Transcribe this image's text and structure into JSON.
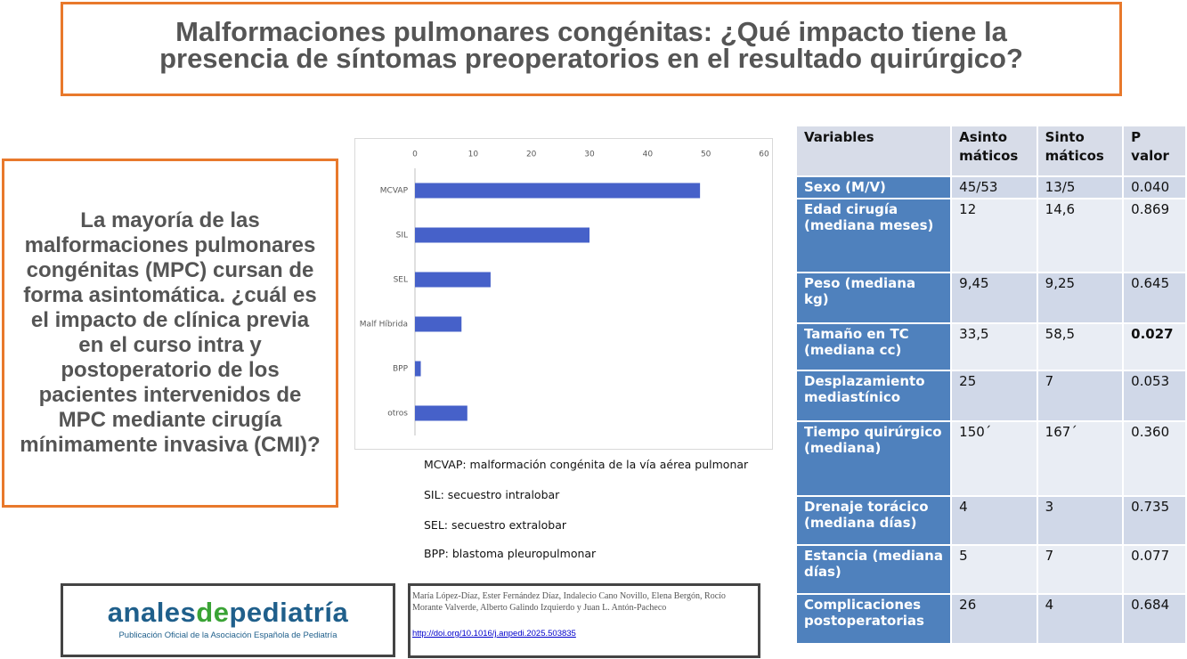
{
  "title": "Malformaciones pulmonares congénitas: ¿Qué impacto tiene la presencia de síntomas preoperatorios en el resultado quirúrgico?",
  "summary": "La mayoría de las malformaciones pulmonares congénitas (MPC) cursan de forma asintomática. ¿cuál es  el impacto de clínica previa en el curso intra y postoperatorio de los pacientes  intervenidos  de MPC mediante cirugía mínimamente invasiva (CMI)?",
  "chart_data": {
    "type": "hbar",
    "categories": [
      "MCVAP",
      "SIL",
      "SEL",
      "Malf Híbrida",
      "BPP",
      "otros"
    ],
    "values": [
      49,
      30,
      13,
      8,
      1,
      9
    ],
    "color": "#4661c9",
    "xlim": [
      0,
      60
    ],
    "xticks": [
      0,
      10,
      20,
      30,
      40,
      50,
      60
    ],
    "grid": false
  },
  "notes": [
    "MCVAP: malformación congénita de la vía aérea pulmonar",
    "SIL: secuestro intralobar",
    "SEL: secuestro extralobar",
    "BPP: blastoma pleuropulmonar"
  ],
  "logo": {
    "parts": [
      "anales",
      "de",
      "pediatría"
    ],
    "subtitle": "Publicación Oficial de la Asociación Española de Pediatría"
  },
  "citation": {
    "authors": "María López-Díaz, Ester Fernández Díaz, Indalecio Cano Novillo, Elena Bergón, Rocío Morante Valverde, Alberto Galindo Izquierdo y Juan L. Antón-Pacheco",
    "doi": "http://doi.org/10.1016/j.anpedi.2025.503835"
  },
  "table": {
    "header": [
      "Variables",
      "Asinto\nmáticos",
      "Sinto\nmáticos",
      "P\nvalor"
    ],
    "rows": [
      [
        "Sexo (M/V)",
        "45/53",
        "13/5",
        "0.040"
      ],
      [
        "Edad cirugía (mediana meses)",
        "12",
        "14,6",
        "0.869"
      ],
      [
        "Peso (mediana  kg)",
        "9,45",
        "9,25",
        "0.645"
      ],
      [
        "Tamaño en TC (mediana cc)",
        "33,5",
        "58,5",
        "0.027"
      ],
      [
        "Desplazamiento mediastínico",
        "25",
        "7",
        "0.053"
      ],
      [
        "Tiempo quirúrgico (mediana)",
        "150´",
        "167´",
        "0.360"
      ],
      [
        "Drenaje torácico (mediana días)",
        "4",
        "3",
        "0.735"
      ],
      [
        "Estancia (mediana días)",
        "5",
        "7",
        "0.077"
      ],
      [
        "Complicaciones postoperatorias",
        "26",
        "4",
        "0.684"
      ]
    ]
  }
}
